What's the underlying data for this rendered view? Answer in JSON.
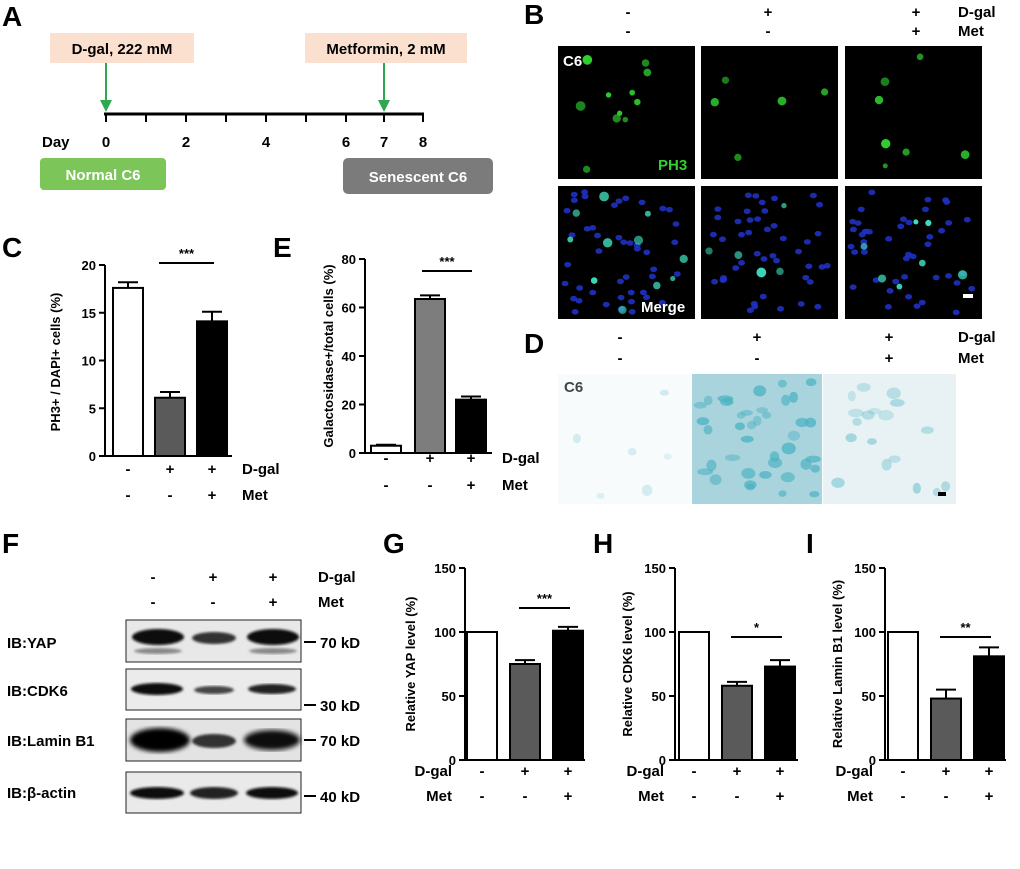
{
  "panels": {
    "A": "A",
    "B": "B",
    "C": "C",
    "D": "D",
    "E": "E",
    "F": "F",
    "G": "G",
    "H": "H",
    "I": "I"
  },
  "panel_a": {
    "treatment1": "D-gal, 222 mM",
    "treatment2": "Metformin, 2 mM",
    "day_label": "Day",
    "days": [
      "0",
      "2",
      "4",
      "6",
      "7",
      "8"
    ],
    "start_box": "Normal C6",
    "end_box": "Senescent C6",
    "colors": {
      "treatment_box": "#fbe0cf",
      "start_box": "#7cc659",
      "end_box": "#7b7b7b",
      "arrow": "#2fa84f"
    }
  },
  "panel_b": {
    "dgal_signs": [
      "-",
      "+",
      "+"
    ],
    "met_signs": [
      "-",
      "-",
      "+"
    ],
    "row1": "D-gal",
    "row2": "Met",
    "cell_label": "C6",
    "stain_label": "PH3",
    "merge_label": "Merge",
    "colors": {
      "ph3": "#30d030",
      "dapi": "#2030c0"
    }
  },
  "panel_d": {
    "dgal_signs": [
      "-",
      "+",
      "+"
    ],
    "met_signs": [
      "-",
      "-",
      "+"
    ],
    "row1": "D-gal",
    "row2": "Met",
    "cell_label": "C6",
    "colors": {
      "stain": "#4bb2c2"
    }
  },
  "panel_f": {
    "dgal_signs": [
      "-",
      "+",
      "+"
    ],
    "met_signs": [
      "-",
      "-",
      "+"
    ],
    "row1": "D-gal",
    "row2": "Met",
    "blots": [
      {
        "label": "IB:YAP",
        "marker": "70 kD"
      },
      {
        "label": "IB:CDK6",
        "marker": "30 kD"
      },
      {
        "label": "IB:Lamin B1",
        "marker": "70 kD"
      },
      {
        "label": "IB:β-actin",
        "marker": "40 kD"
      }
    ]
  },
  "chart_data": [
    {
      "panel": "C",
      "type": "bar",
      "ylabel": "PH3+ / DAPI+ cells (%)",
      "ylim": [
        0,
        20
      ],
      "yticks": [
        0,
        5,
        10,
        15,
        20
      ],
      "values": [
        17.6,
        6.1,
        14.1
      ],
      "errors": [
        0.6,
        0.6,
        1.0
      ],
      "colors": [
        "#ffffff",
        "#5a5a5a",
        "#000000"
      ],
      "significance": "***",
      "dgal": [
        "-",
        "+",
        "+"
      ],
      "met": [
        "-",
        "-",
        "+"
      ],
      "row1": "D-gal",
      "row2": "Met"
    },
    {
      "panel": "E",
      "type": "bar",
      "ylabel": "Galactosidase+/total cells (%)",
      "ylim": [
        0,
        80
      ],
      "yticks": [
        0,
        20,
        40,
        60,
        80
      ],
      "values": [
        3,
        63.5,
        22
      ],
      "errors": [
        0.4,
        1.5,
        1.3
      ],
      "colors": [
        "#ffffff",
        "#7d7d7d",
        "#000000"
      ],
      "significance": "***",
      "dgal": [
        "-",
        "+",
        "+"
      ],
      "met": [
        "-",
        "-",
        "+"
      ],
      "row1": "D-gal",
      "row2": "Met"
    },
    {
      "panel": "G",
      "type": "bar",
      "ylabel": "Relative YAP level (%)",
      "ylim": [
        0,
        150
      ],
      "yticks": [
        0,
        50,
        100,
        150
      ],
      "values": [
        100,
        75,
        101
      ],
      "errors": [
        0,
        3,
        3
      ],
      "colors": [
        "#ffffff",
        "#5a5a5a",
        "#000000"
      ],
      "significance": "***",
      "dgal": [
        "-",
        "+",
        "+"
      ],
      "met": [
        "-",
        "-",
        "+"
      ],
      "row1": "D-gal",
      "row2": "Met"
    },
    {
      "panel": "H",
      "type": "bar",
      "ylabel": "Relative CDK6 level (%)",
      "ylim": [
        0,
        150
      ],
      "yticks": [
        0,
        50,
        100,
        150
      ],
      "values": [
        100,
        58,
        73
      ],
      "errors": [
        0,
        3,
        5
      ],
      "colors": [
        "#ffffff",
        "#5a5a5a",
        "#000000"
      ],
      "significance": "*",
      "dgal": [
        "-",
        "+",
        "+"
      ],
      "met": [
        "-",
        "-",
        "+"
      ],
      "row1": "D-gal",
      "row2": "Met"
    },
    {
      "panel": "I",
      "type": "bar",
      "ylabel": "Relative Lamin B1 level (%)",
      "ylim": [
        0,
        150
      ],
      "yticks": [
        0,
        50,
        100,
        150
      ],
      "values": [
        100,
        48,
        81
      ],
      "errors": [
        0,
        7,
        7
      ],
      "colors": [
        "#ffffff",
        "#5a5a5a",
        "#000000"
      ],
      "significance": "**",
      "dgal": [
        "-",
        "+",
        "+"
      ],
      "met": [
        "-",
        "-",
        "+"
      ],
      "row1": "D-gal",
      "row2": "Met"
    }
  ]
}
